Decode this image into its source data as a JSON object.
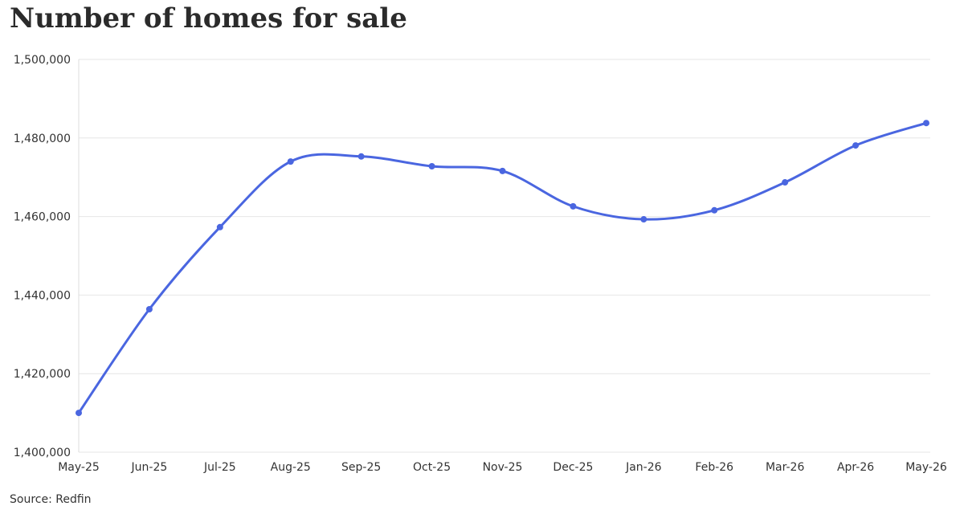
{
  "chart_data": {
    "type": "line",
    "title": "Number of homes for sale",
    "source": "Source: Redfin",
    "categories": [
      "May-25",
      "Jun-25",
      "Jul-25",
      "Aug-25",
      "Sep-25",
      "Oct-25",
      "Nov-25",
      "Dec-25",
      "Jan-26",
      "Feb-26",
      "Mar-26",
      "Apr-26",
      "May-26"
    ],
    "series": [
      {
        "name": "Homes for sale",
        "color": "#4a66e0",
        "values": [
          1410000,
          1436400,
          1457300,
          1474000,
          1475300,
          1472800,
          1471600,
          1462600,
          1459300,
          1461600,
          1468700,
          1478100,
          1483800
        ]
      }
    ],
    "ylim": [
      1400000,
      1500000
    ],
    "yticks": [
      {
        "value": 1400000,
        "label": "1,400,000"
      },
      {
        "value": 1420000,
        "label": "1,420,000"
      },
      {
        "value": 1440000,
        "label": "1,440,000"
      },
      {
        "value": 1460000,
        "label": "1,460,000"
      },
      {
        "value": 1480000,
        "label": "1,480,000"
      },
      {
        "value": 1500000,
        "label": "1,500,000"
      }
    ],
    "grid": true
  }
}
